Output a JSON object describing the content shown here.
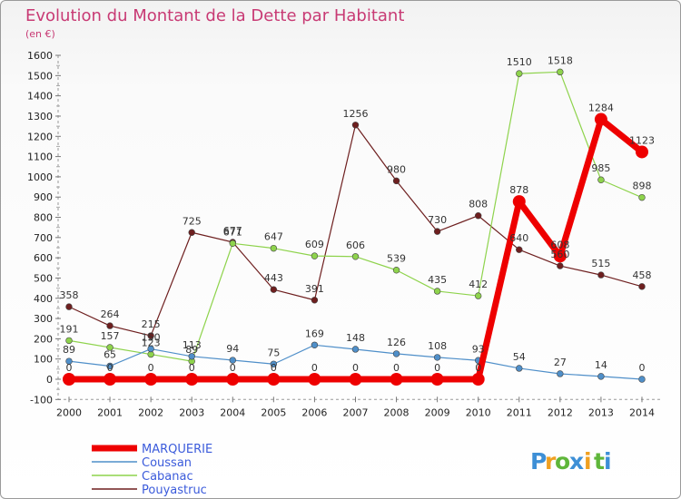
{
  "chart_data": {
    "type": "line",
    "title": "Evolution du Montant de la Dette par Habitant",
    "unit_label": "(en €)",
    "x": [
      "2000",
      "2001",
      "2002",
      "2003",
      "2004",
      "2005",
      "2006",
      "2007",
      "2008",
      "2009",
      "2010",
      "2011",
      "2012",
      "2013",
      "2014"
    ],
    "ylim": [
      -100,
      1600
    ],
    "yticks": [
      -100,
      0,
      100,
      200,
      300,
      400,
      500,
      600,
      700,
      800,
      900,
      1000,
      1100,
      1200,
      1300,
      1400,
      1500,
      1600
    ],
    "grid": false,
    "legend_position": "bottom-left",
    "series": [
      {
        "name": "MARQUERIE",
        "color": "#ee0000",
        "values": [
          0,
          0,
          0,
          0,
          0,
          0,
          0,
          0,
          0,
          0,
          0,
          878,
          608,
          1284,
          1123
        ]
      },
      {
        "name": "Coussan",
        "color": "#4f8fc9",
        "values": [
          89,
          65,
          150,
          113,
          94,
          75,
          169,
          148,
          126,
          108,
          93,
          54,
          27,
          14,
          0
        ]
      },
      {
        "name": "Cabanac",
        "color": "#8ed34c",
        "values": [
          191,
          157,
          123,
          89,
          671,
          647,
          609,
          606,
          539,
          435,
          412,
          1510,
          1518,
          985,
          898
        ]
      },
      {
        "name": "Pouyastruc",
        "color": "#6e1f1f",
        "values": [
          358,
          264,
          215,
          725,
          677,
          443,
          391,
          1256,
          980,
          730,
          808,
          640,
          560,
          515,
          458
        ]
      }
    ],
    "data_labels": {
      "MARQUERIE": [
        "0",
        "0",
        "0",
        "0",
        "0",
        "0",
        "0",
        "0",
        "0",
        "0",
        "0",
        "878",
        "608",
        "1284",
        "1123"
      ],
      "Coussan": [
        "89",
        "65",
        "150",
        "113",
        "94",
        "75",
        "169",
        "148",
        "126",
        "108",
        "93",
        "54",
        "27",
        "14",
        "0"
      ],
      "Cabanac": [
        "191",
        "157",
        "123",
        "89",
        "671",
        "647",
        "609",
        "606",
        "539",
        "435",
        "412",
        "1510",
        "1518",
        "985",
        "898"
      ],
      "Pouyastruc": [
        "358",
        "264",
        "215",
        "725",
        "677",
        "443",
        "391",
        "1256",
        "980",
        "730",
        "808",
        "640",
        "560",
        "515",
        "458"
      ]
    }
  },
  "legend": {
    "items": [
      {
        "label": "MARQUERIE",
        "color": "#ee0000",
        "text_color": "#3b5bdb"
      },
      {
        "label": "Coussan",
        "color": "#4f8fc9",
        "text_color": "#3b5bdb"
      },
      {
        "label": "Cabanac",
        "color": "#8ed34c",
        "text_color": "#3b5bdb"
      },
      {
        "label": "Pouyastruc",
        "color": "#6e1f1f",
        "text_color": "#3b5bdb"
      }
    ]
  },
  "logo": {
    "letters": [
      "P",
      "r",
      "o",
      "x",
      "i",
      "t",
      "i"
    ],
    "colors": [
      "#3d8fd6",
      "#f0a020",
      "#5fb63a",
      "#3d8fd6",
      "#f0a020",
      "#5fb63a",
      "#3d8fd6"
    ]
  }
}
